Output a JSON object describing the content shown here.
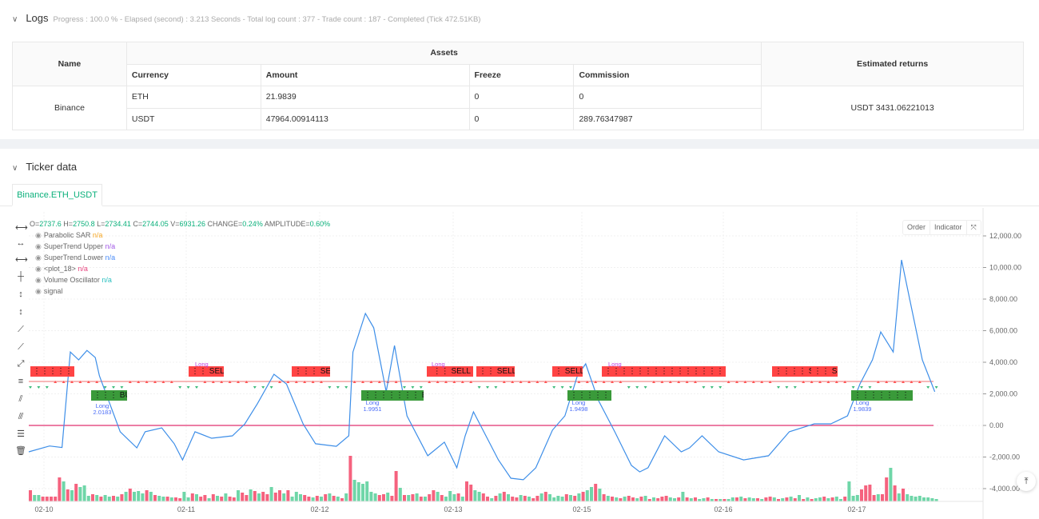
{
  "logs": {
    "title": "Logs",
    "progress": "Progress : 100.0 % - Elapsed (second) : 3.213  Seconds - Total log count : 377 - Trade count : 187 - Completed (Tick 472.51KB)",
    "table": {
      "name_header": "Name",
      "assets_header": "Assets",
      "returns_header": "Estimated returns",
      "columns": [
        "Currency",
        "Amount",
        "Freeze",
        "Commission"
      ],
      "exchange": "Binance",
      "rows": [
        [
          "ETH",
          "21.9839",
          "0",
          "0"
        ],
        [
          "USDT",
          "47964.00914113",
          "0",
          "289.76347987"
        ]
      ],
      "estimated_returns": "USDT 3431.06221013"
    }
  },
  "ticker": {
    "title": "Ticker data",
    "tab": "Binance.ETH_USDT",
    "ohlc": {
      "o_label": "O=",
      "o": "2737.6",
      "h_label": " H=",
      "h": "2750.8",
      "l_label": " L=",
      "l": "2734.41",
      "c_label": " C=",
      "c": "2744.05",
      "v_label": " V=",
      "v": "6931.26",
      "change_label": " CHANGE=",
      "change": "0.24%",
      "amp_label": " AMPLITUDE=",
      "amp": "0.60%"
    },
    "legend": [
      {
        "name": "Parabolic SAR",
        "value": "n/a",
        "color": "#f5a623"
      },
      {
        "name": "SuperTrend Upper",
        "value": "n/a",
        "color": "#a259e6"
      },
      {
        "name": "SuperTrend Lower",
        "value": "n/a",
        "color": "#4a8cf7"
      },
      {
        "name": "<plot_18>",
        "value": "n/a",
        "color": "#e8457f"
      },
      {
        "name": "Volume Oscillator",
        "value": "n/a",
        "color": "#2bc0c0"
      },
      {
        "name": "signal",
        "value": "",
        "color": "#666"
      }
    ],
    "buttons": {
      "order": "Order",
      "indicator": "Indicator",
      "fullscreen_icon": "expand-icon"
    },
    "signals": {
      "sell": [
        "⋮⋮⋮⋮⋮ SELL",
        "⋮⋮ SELL",
        "⋮⋮⋮ SELL",
        "⋮⋮ SELL",
        "⋮⋮ SELL",
        "⋮ SELL",
        "⋮⋮⋮⋮⋮⋮⋮⋮⋮⋮⋮⋮⋮⋮⋮⋮⋮⋮⋮⋮⋮⋮ SELL",
        "⋮⋮⋮⋮ SE",
        "⋮⋮ SELL"
      ],
      "buy": [
        "⋮⋮⋮ BUY",
        "⋮⋮⋮⋮⋮⋮⋮ BUY",
        "⋮⋮⋮⋮⋮ BUY",
        "⋮⋮⋮⋮⋮⋮⋮⋮ BUY"
      ],
      "long_entries": [
        [
          "Long",
          "2.0183"
        ],
        [
          "Long",
          "1.9951"
        ],
        [
          "Long",
          "1.9498"
        ],
        [
          "Long",
          "1.9839"
        ]
      ],
      "long_tags": [
        "Long",
        "Long",
        "Long"
      ]
    }
  },
  "chart_data": {
    "type": "line",
    "y_ticks": [
      "12,000.00",
      "10,000.00",
      "8,000.00",
      "6,000.00",
      "4,000.00",
      "2,000.00",
      "0.00",
      "-2,000.00",
      "-4,000.00"
    ],
    "ylim": [
      -4000,
      12000
    ],
    "x_ticks": [
      "02-10",
      "02-11",
      "02-12",
      "02-13",
      "02-15",
      "02-16",
      "02-17"
    ],
    "grid": true,
    "colors": {
      "line": "#3d8ee8",
      "zero_line": "#e0306f",
      "up": "#6fd6a8",
      "down": "#f5627e",
      "supertrend": "#f08080"
    },
    "oscillator": [
      [
        0,
        -1670
      ],
      [
        5,
        -1300
      ],
      [
        8,
        -1400
      ],
      [
        10,
        4650
      ],
      [
        12,
        4150
      ],
      [
        14,
        4750
      ],
      [
        16,
        4300
      ],
      [
        17,
        3140
      ],
      [
        22,
        -400
      ],
      [
        26,
        -1420
      ],
      [
        28,
        -400
      ],
      [
        32,
        -150
      ],
      [
        35,
        -1160
      ],
      [
        37,
        -2180
      ],
      [
        40,
        -400
      ],
      [
        44,
        -810
      ],
      [
        49,
        -660
      ],
      [
        52,
        100
      ],
      [
        55,
        1370
      ],
      [
        59,
        3240
      ],
      [
        62,
        2630
      ],
      [
        66,
        100
      ],
      [
        69,
        -1160
      ],
      [
        74,
        -1320
      ],
      [
        77,
        -660
      ],
      [
        78,
        4650
      ],
      [
        81,
        7090
      ],
      [
        83,
        6180
      ],
      [
        86,
        2130
      ],
      [
        88,
        5060
      ],
      [
        91,
        610
      ],
      [
        96,
        -1920
      ],
      [
        100,
        -1060
      ],
      [
        103,
        -2680
      ],
      [
        105,
        -660
      ],
      [
        107,
        860
      ],
      [
        110,
        -660
      ],
      [
        113,
        -2180
      ],
      [
        116,
        -3340
      ],
      [
        119,
        -3440
      ],
      [
        122,
        -2680
      ],
      [
        126,
        -300
      ],
      [
        129,
        610
      ],
      [
        132,
        3140
      ],
      [
        134,
        3900
      ],
      [
        137,
        1620
      ],
      [
        141,
        -400
      ],
      [
        145,
        -2530
      ],
      [
        147,
        -2940
      ],
      [
        149,
        -2680
      ],
      [
        153,
        -660
      ],
      [
        157,
        -1670
      ],
      [
        159,
        -1420
      ],
      [
        162,
        -660
      ],
      [
        166,
        -1670
      ],
      [
        172,
        -2180
      ],
      [
        178,
        -1920
      ],
      [
        183,
        -400
      ],
      [
        189,
        100
      ],
      [
        193,
        100
      ],
      [
        197,
        610
      ],
      [
        200,
        2630
      ],
      [
        203,
        4150
      ],
      [
        205,
        5920
      ],
      [
        208,
        4650
      ],
      [
        210,
        10480
      ],
      [
        212,
        7950
      ],
      [
        215,
        4150
      ],
      [
        218,
        2130
      ]
    ],
    "volume": [
      14,
      8,
      8,
      6,
      6,
      6,
      6,
      30,
      25,
      15,
      14,
      22,
      18,
      20,
      7,
      9,
      8,
      6,
      8,
      6,
      7,
      6,
      9,
      12,
      16,
      12,
      13,
      10,
      14,
      12,
      8,
      7,
      6,
      6,
      5,
      5,
      4,
      12,
      5,
      10,
      9,
      6,
      8,
      4,
      9,
      7,
      6,
      10,
      6,
      5,
      14,
      11,
      8,
      15,
      13,
      10,
      12,
      9,
      18,
      11,
      14,
      10,
      14,
      6,
      12,
      9,
      8,
      6,
      5,
      7,
      6,
      9,
      10,
      7,
      6,
      4,
      10,
      57,
      27,
      24,
      22,
      25,
      12,
      10,
      8,
      9,
      11,
      7,
      38,
      17,
      8,
      8,
      9,
      10,
      6,
      6,
      9,
      14,
      12,
      8,
      6,
      13,
      9,
      10,
      6,
      25,
      21,
      14,
      12,
      10,
      6,
      4,
      7,
      10,
      12,
      9,
      6,
      5,
      8,
      7,
      6,
      4,
      7,
      10,
      12,
      9,
      5,
      7,
      6,
      9,
      8,
      7,
      10,
      12,
      14,
      18,
      22,
      16,
      9,
      7,
      6,
      5,
      4,
      6,
      7,
      5,
      4,
      6,
      7,
      3,
      5,
      4,
      6,
      7,
      5,
      4,
      5,
      12,
      5,
      4,
      5,
      3,
      4,
      5,
      3,
      3,
      3,
      3,
      3,
      5,
      5,
      6,
      4,
      5,
      4,
      4,
      3,
      5,
      6,
      5,
      3,
      4,
      5,
      6,
      4,
      8,
      3,
      5,
      3,
      4,
      5,
      6,
      4,
      5,
      6,
      3,
      6,
      25,
      7,
      8,
      15,
      20,
      21,
      8,
      9,
      9,
      30,
      42,
      20,
      10,
      16,
      9,
      7,
      6,
      7,
      5,
      5,
      4,
      3
    ],
    "volume_dir": "rggrrrrrgrgrgggrgrggrgrgrgggrgrggrgrrggrgrrgrgrgrrgrrgrgrrgrrgrgggrrgrgrgrgrgrggggggrrgrrgrgrgrgrrgrgggrgrrggrrgrgrgrrgrgrrgrggggrgrgrggrgrgrgrgrrgrgrgrrrggrgrgrggrgrgrggrgrggrgrrgrgrgrgrgrggrgrggrgggrrrrgrrgrgr"
  }
}
